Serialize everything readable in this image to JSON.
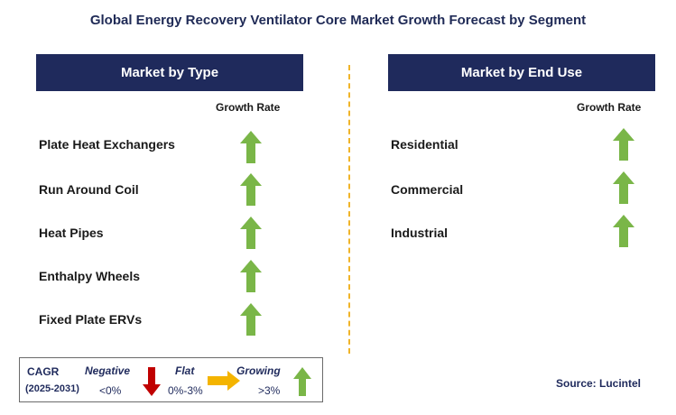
{
  "title": "Global Energy Recovery Ventilator Core Market Growth Forecast by Segment",
  "left_panel": {
    "header": "Market by Type",
    "column_label": "Growth Rate",
    "items": [
      {
        "label": "Plate Heat Exchangers",
        "trend": "growing"
      },
      {
        "label": "Run Around Coil",
        "trend": "growing"
      },
      {
        "label": "Heat Pipes",
        "trend": "growing"
      },
      {
        "label": "Enthalpy Wheels",
        "trend": "growing"
      },
      {
        "label": "Fixed Plate ERVs",
        "trend": "growing"
      }
    ]
  },
  "right_panel": {
    "header": "Market by End Use",
    "column_label": "Growth Rate",
    "items": [
      {
        "label": "Residential",
        "trend": "growing"
      },
      {
        "label": "Commercial",
        "trend": "growing"
      },
      {
        "label": "Industrial",
        "trend": "growing"
      }
    ]
  },
  "legend": {
    "cagr_label": "CAGR",
    "period": "(2025-2031)",
    "negative": {
      "label": "Negative",
      "range": "<0%",
      "icon": "arrow-down-icon"
    },
    "flat": {
      "label": "Flat",
      "range": "0%-3%",
      "icon": "arrow-right-icon"
    },
    "growing": {
      "label": "Growing",
      "range": ">3%",
      "icon": "arrow-up-icon"
    }
  },
  "source": "Source: Lucintel",
  "colors": {
    "header_bg": "#1f2a5c",
    "growing": "#7ab648",
    "negative": "#c00000",
    "flat": "#f4b400",
    "divider": "#f0b429"
  }
}
